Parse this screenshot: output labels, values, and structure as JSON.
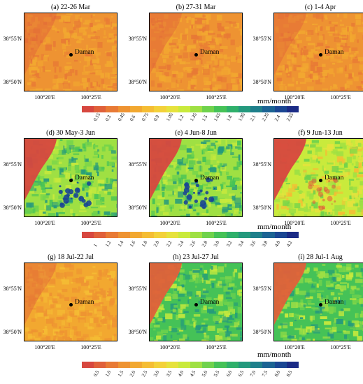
{
  "rows": [
    {
      "panels": [
        {
          "title": "(a) 22-26 Mar",
          "scheme": "low"
        },
        {
          "title": "(b) 27-31 Mar",
          "scheme": "low"
        },
        {
          "title": "(c) 1-4 Apr",
          "scheme": "low"
        }
      ],
      "unit": "mm/month",
      "ticks": [
        "0.15",
        "0.3",
        "0.45",
        "0.6",
        "0.75",
        "0.9",
        "1.05",
        "1.2",
        "1.35",
        "1.5",
        "1.65",
        "1.8",
        "1.95",
        "2.1",
        "2.25",
        "2.4",
        "2.55"
      ]
    },
    {
      "panels": [
        {
          "title": "(d) 30 May-3 Jun",
          "scheme": "high"
        },
        {
          "title": "(e) 4 Jun-8 Jun",
          "scheme": "high"
        },
        {
          "title": "(f) 9 Jun-13 Jun",
          "scheme": "mid"
        }
      ],
      "unit": "mm/month",
      "ticks": [
        "1",
        "1.2",
        "1.4",
        "1.6",
        "1.8",
        "2.0",
        "2.2",
        "2.4",
        "2.6",
        "2.8",
        "3.0",
        "3.2",
        "3.4",
        "3.6",
        "3.8",
        "4.0",
        "4.2"
      ]
    },
    {
      "panels": [
        {
          "title": "(g) 18 Jul-22 Jul",
          "scheme": "low2"
        },
        {
          "title": "(h) 23 Jul-27 Jul",
          "scheme": "mid2"
        },
        {
          "title": "(i) 28 Jul-1 Aug",
          "scheme": "mid2"
        }
      ],
      "unit": "mm/month",
      "ticks": [
        "0.5",
        "1.0",
        "1.5",
        "2.0",
        "2.5",
        "3.0",
        "3.5",
        "4.0",
        "4.5",
        "5.0",
        "5.5",
        "6.0",
        "6.5",
        "7.0",
        "7.5",
        "8.0",
        "8.5"
      ]
    }
  ],
  "station_label": "Daman",
  "lat_labels": [
    "38°55'N",
    "38°50'N"
  ],
  "lon_labels": [
    "100°20'E",
    "100°25'E"
  ],
  "colors": {
    "scale": [
      "#d7473f",
      "#e0603a",
      "#e87a35",
      "#ee9332",
      "#f2a830",
      "#f5bd34",
      "#f3d13a",
      "#e6e23d",
      "#c9ea3c",
      "#9fe043",
      "#6fd24c",
      "#45c257",
      "#2fb06b",
      "#24997d",
      "#1e7f8b",
      "#1b6393",
      "#1a4693",
      "#1b2b86"
    ]
  }
}
